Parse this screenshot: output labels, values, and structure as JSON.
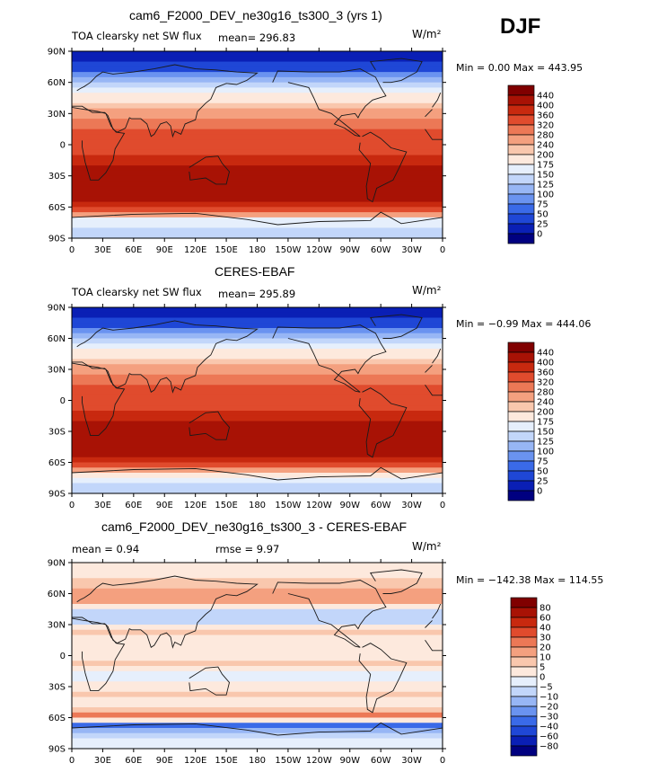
{
  "season_label": "DJF",
  "colors": {
    "abs_scale": [
      "#000080",
      "#0a1fb5",
      "#1f47d6",
      "#3a6ae8",
      "#6a93f0",
      "#97b6f5",
      "#c2d6fa",
      "#e6effc",
      "#fde9dd",
      "#f9c7ad",
      "#f4a07f",
      "#ec7856",
      "#e04b2d",
      "#c8290f",
      "#a81205",
      "#800000"
    ],
    "diff_scale": [
      "#000080",
      "#0a1fb5",
      "#1f47d6",
      "#3a6ae8",
      "#6a93f0",
      "#97b6f5",
      "#c2d6fa",
      "#e6effc",
      "#fde9dd",
      "#f9c7ad",
      "#f4a07f",
      "#ec7856",
      "#e04b2d",
      "#c8290f",
      "#a81205",
      "#800000"
    ],
    "coastline": "#1a1a1a"
  },
  "chart_data": [
    {
      "type": "heatmap",
      "title": "cam6_F2000_DEV_ne30g16_ts300_3 (yrs 1)",
      "variable": "TOA clearsky net SW flux",
      "mean_text": "mean= 296.83",
      "units": "W/m²",
      "min_max_text": "Min =    0.00 Max = 443.95",
      "x_ticks": [
        "0",
        "30E",
        "60E",
        "90E",
        "120E",
        "150E",
        "180",
        "150W",
        "120W",
        "90W",
        "60W",
        "30W",
        "0"
      ],
      "y_ticks": [
        "90N",
        "60N",
        "30N",
        "0",
        "30S",
        "60S",
        "90S"
      ],
      "colorbar_levels": [
        "440",
        "400",
        "360",
        "320",
        "280",
        "240",
        "200",
        "175",
        "150",
        "125",
        "100",
        "75",
        "50",
        "25",
        "0"
      ],
      "zonal_profile": {
        "lat": [
          90,
          85,
          80,
          75,
          70,
          65,
          60,
          55,
          50,
          45,
          40,
          35,
          30,
          25,
          20,
          15,
          10,
          5,
          0,
          -5,
          -10,
          -15,
          -20,
          -25,
          -30,
          -35,
          -40,
          -45,
          -50,
          -55,
          -60,
          -65,
          -70,
          -75,
          -80,
          -85,
          -90
        ],
        "value": [
          0,
          5,
          15,
          35,
          60,
          90,
          120,
          150,
          170,
          185,
          200,
          225,
          255,
          280,
          300,
          315,
          325,
          330,
          335,
          345,
          360,
          375,
          390,
          410,
          430,
          425,
          420,
          410,
          405,
          400,
          380,
          310,
          180,
          160,
          150,
          145,
          140
        ]
      }
    },
    {
      "type": "heatmap",
      "title": "CERES-EBAF",
      "variable": "TOA clearsky net SW flux",
      "mean_text": "mean= 295.89",
      "units": "W/m²",
      "min_max_text": "Min =   −0.99 Max = 444.06",
      "x_ticks": [
        "0",
        "30E",
        "60E",
        "90E",
        "120E",
        "150E",
        "180",
        "150W",
        "120W",
        "90W",
        "60W",
        "30W",
        "0"
      ],
      "y_ticks": [
        "90N",
        "60N",
        "30N",
        "0",
        "30S",
        "60S",
        "90S"
      ],
      "colorbar_levels": [
        "440",
        "400",
        "360",
        "320",
        "280",
        "240",
        "200",
        "175",
        "150",
        "125",
        "100",
        "75",
        "50",
        "25",
        "0"
      ],
      "zonal_profile": {
        "lat": [
          90,
          85,
          80,
          75,
          70,
          65,
          60,
          55,
          50,
          45,
          40,
          35,
          30,
          25,
          20,
          15,
          10,
          5,
          0,
          -5,
          -10,
          -15,
          -20,
          -25,
          -30,
          -35,
          -40,
          -45,
          -50,
          -55,
          -60,
          -65,
          -70,
          -75,
          -80,
          -85,
          -90
        ],
        "value": [
          0,
          5,
          15,
          35,
          60,
          90,
          115,
          145,
          170,
          185,
          205,
          225,
          255,
          280,
          300,
          315,
          325,
          330,
          335,
          345,
          360,
          375,
          390,
          410,
          430,
          425,
          420,
          412,
          405,
          400,
          390,
          320,
          190,
          165,
          150,
          145,
          140
        ]
      }
    },
    {
      "type": "heatmap",
      "title": "cam6_F2000_DEV_ne30g16_ts300_3 - CERES-EBAF",
      "mean_text": "mean =     0.94",
      "rmse_text": "rmse =     9.97",
      "units": "W/m²",
      "min_max_text": "Min = −142.38 Max = 114.55",
      "x_ticks": [
        "0",
        "30E",
        "60E",
        "90E",
        "120E",
        "150E",
        "180",
        "150W",
        "120W",
        "90W",
        "60W",
        "30W",
        "0"
      ],
      "y_ticks": [
        "90N",
        "60N",
        "30N",
        "0",
        "30S",
        "60S",
        "90S"
      ],
      "colorbar_levels": [
        "80",
        "60",
        "40",
        "30",
        "20",
        "10",
        "5",
        "0",
        "−5",
        "−10",
        "−20",
        "−30",
        "−40",
        "−60",
        "−80"
      ],
      "zonal_profile": {
        "lat": [
          90,
          85,
          80,
          75,
          70,
          65,
          60,
          55,
          50,
          45,
          40,
          35,
          30,
          25,
          20,
          15,
          10,
          5,
          0,
          -5,
          -10,
          -15,
          -20,
          -25,
          -30,
          -35,
          -40,
          -45,
          -50,
          -55,
          -60,
          -65,
          -70,
          -75,
          -80,
          -85,
          -90
        ],
        "value": [
          0,
          0,
          2,
          4,
          6,
          8,
          12,
          14,
          8,
          -4,
          -8,
          -12,
          -2,
          6,
          4,
          2,
          2,
          -2,
          2,
          4,
          6,
          -4,
          -6,
          -2,
          2,
          6,
          4,
          2,
          4,
          10,
          40,
          -40,
          -30,
          -10,
          -6,
          -4,
          -4
        ]
      }
    }
  ]
}
